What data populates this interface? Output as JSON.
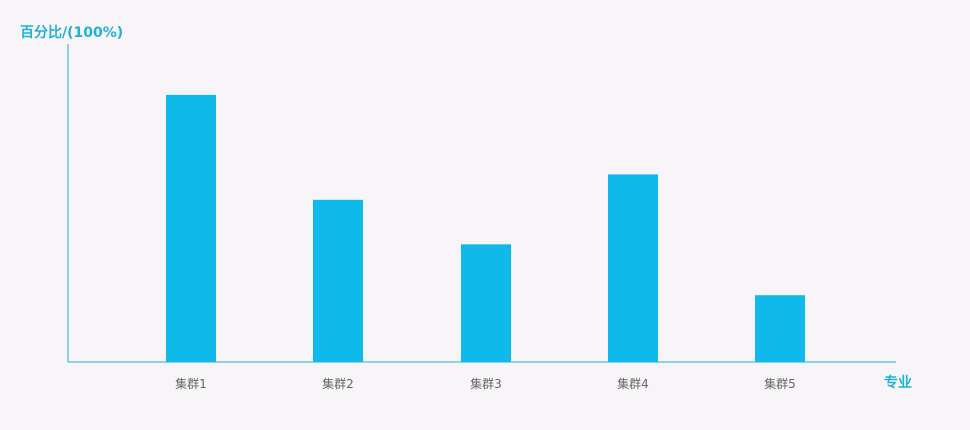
{
  "chart_data": {
    "type": "bar",
    "title": "",
    "ylabel": "百分比/(100%)",
    "xlabel": "专业",
    "categories": [
      "集群1",
      "集群2",
      "集群3",
      "集群4",
      "集群5"
    ],
    "values": [
      0.84,
      0.51,
      0.37,
      0.59,
      0.21
    ],
    "ylim": [
      0,
      1.0
    ],
    "grid": false,
    "legend": "none"
  },
  "colors": {
    "bar": "#0fb9ea",
    "axis": "#27b0d4",
    "axis_label": "#1fb2d8",
    "tick_label": "#666666",
    "background": "#f7f5f7"
  }
}
